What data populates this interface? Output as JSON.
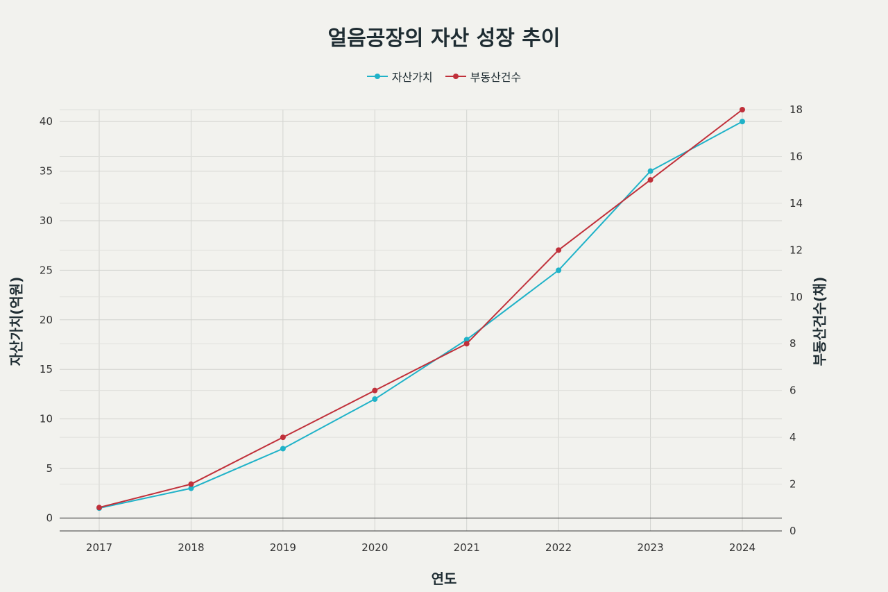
{
  "chart_data": {
    "type": "line",
    "title": "얼음공장의 자산 성장 추이",
    "xlabel": "연도",
    "ylabel": "자산가치(억원)",
    "y2label": "부동산건수(채)",
    "categories": [
      "2017",
      "2018",
      "2019",
      "2020",
      "2021",
      "2022",
      "2023",
      "2024"
    ],
    "ylim": [
      -1.3,
      41.2
    ],
    "y2lim": [
      0,
      18
    ],
    "yticks": [
      0,
      5,
      10,
      15,
      20,
      25,
      30,
      35,
      40
    ],
    "y2ticks": [
      0,
      2,
      4,
      6,
      8,
      10,
      12,
      14,
      16,
      18
    ],
    "grid": true,
    "legend_position": "top-center",
    "series": [
      {
        "name": "자산가치",
        "axis": "left",
        "color": "#1fb2c8",
        "values": [
          1,
          3,
          7,
          12,
          18,
          25,
          35,
          40
        ]
      },
      {
        "name": "부동산건수",
        "axis": "right",
        "color": "#c0303a",
        "values": [
          1,
          2,
          4,
          6,
          8,
          12,
          15,
          18
        ]
      }
    ]
  }
}
